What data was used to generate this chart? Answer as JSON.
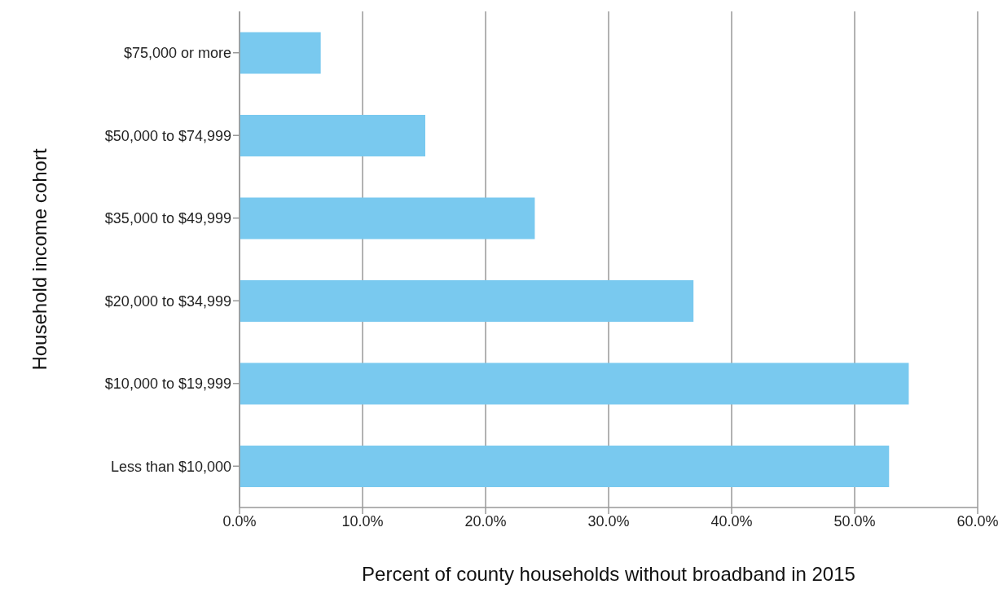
{
  "chart_data": {
    "type": "bar",
    "orientation": "horizontal",
    "xlabel": "Percent of county households without broadband in 2015",
    "ylabel": "Household income cohort",
    "categories": [
      "$75,000 or more",
      "$50,000 to $74,999",
      "$35,000 to $49,999",
      "$20,000 to $34,999",
      "$10,000 to $19,999",
      "Less than $10,000"
    ],
    "values": [
      6.6,
      15.1,
      24.0,
      36.9,
      54.4,
      52.8
    ],
    "color": "#79c9ef",
    "xlim": [
      0,
      60
    ],
    "xticks": [
      {
        "value": 0,
        "label": "0.0%"
      },
      {
        "value": 10,
        "label": "10.0%"
      },
      {
        "value": 20,
        "label": "20.0%"
      },
      {
        "value": 30,
        "label": "30.0%"
      },
      {
        "value": 40,
        "label": "40.0%"
      },
      {
        "value": 50,
        "label": "50.0%"
      },
      {
        "value": 60,
        "label": "60.0%"
      }
    ],
    "grid": "x"
  }
}
